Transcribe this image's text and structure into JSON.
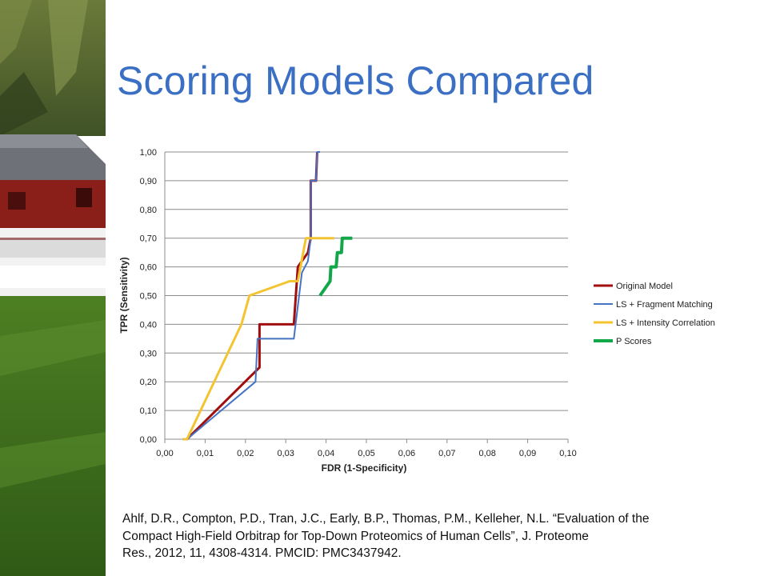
{
  "slide": {
    "title": "Scoring Models Compared",
    "citation_lines": [
      "Ahlf, D.R., Compton, P.D., Tran, J.C., Early, B.P., Thomas, P.M., Kelleher, N.L. “Evaluation of the",
      "Compact High-Field Orbitrap for Top-Down Proteomics of Human Cells”, J. Proteome",
      "Res., 2012, 11, 4308-4314. PMCID: PMC3437942."
    ],
    "side_image": "farm-photo"
  },
  "colors": {
    "title": "#3a6fc4",
    "grid": "#8c8c8c"
  },
  "chart_data": {
    "type": "line",
    "xlabel": "FDR (1-Specificity)",
    "ylabel": "TPR (Sensitivity)",
    "xlim": [
      0,
      0.1
    ],
    "ylim": [
      0,
      1.0
    ],
    "xticks": [
      "0,00",
      "0,01",
      "0,02",
      "0,03",
      "0,04",
      "0,05",
      "0,06",
      "0,07",
      "0,08",
      "0,09",
      "0,10"
    ],
    "yticks": [
      "0,00",
      "0,10",
      "0,20",
      "0,30",
      "0,40",
      "0,50",
      "0,60",
      "0,70",
      "0,80",
      "0,90",
      "1,00"
    ],
    "grid": "horizontal",
    "legend_position": "right",
    "series": [
      {
        "name": "Original Model",
        "color": "#a00e0e",
        "x": [
          0.0045,
          0.0055,
          0.0235,
          0.0235,
          0.032,
          0.033,
          0.0345,
          0.0355,
          0.0362,
          0.0362,
          0.0375,
          0.0378
        ],
        "y": [
          0.0,
          0.0,
          0.25,
          0.4,
          0.4,
          0.6,
          0.63,
          0.65,
          0.7,
          0.9,
          0.9,
          1.0
        ]
      },
      {
        "name": "LS + Fragment Matching",
        "color": "#4472c4",
        "x": [
          0.0045,
          0.0055,
          0.0225,
          0.023,
          0.032,
          0.034,
          0.0355,
          0.0362,
          0.0362,
          0.0375,
          0.0378,
          0.0385
        ],
        "y": [
          0.0,
          0.0,
          0.2,
          0.35,
          0.35,
          0.58,
          0.62,
          0.7,
          0.9,
          0.9,
          1.0,
          1.0
        ]
      },
      {
        "name": "LS + Intensity Correlation",
        "color": "#f4c430",
        "x": [
          0.0045,
          0.0055,
          0.019,
          0.021,
          0.031,
          0.033,
          0.035,
          0.042
        ],
        "y": [
          0.0,
          0.0,
          0.4,
          0.5,
          0.55,
          0.55,
          0.7,
          0.7
        ]
      },
      {
        "name": "P Scores",
        "color": "#12a84a",
        "x": [
          0.0385,
          0.041,
          0.0412,
          0.0425,
          0.0428,
          0.0438,
          0.044,
          0.0465
        ],
        "y": [
          0.5,
          0.55,
          0.6,
          0.6,
          0.65,
          0.65,
          0.7,
          0.7
        ]
      }
    ]
  }
}
